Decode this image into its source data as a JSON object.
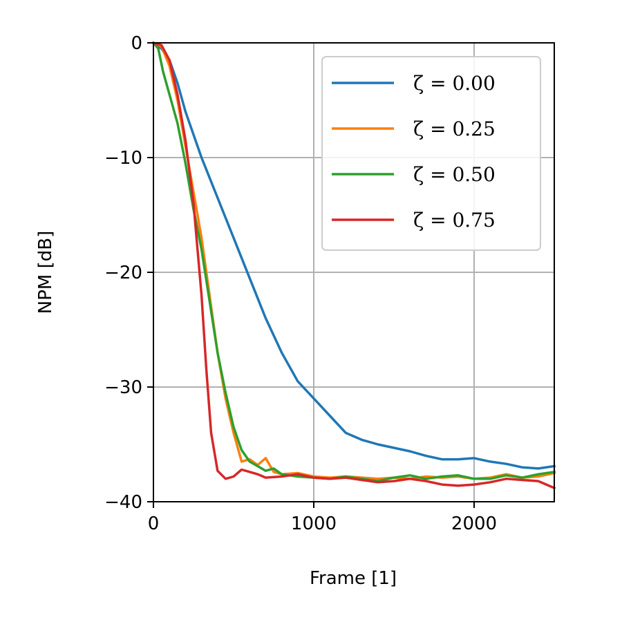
{
  "chart_data": {
    "type": "line",
    "xlabel": "Frame [1]",
    "ylabel": "NPM [dB]",
    "xlim": [
      0,
      2500
    ],
    "ylim": [
      -40,
      0
    ],
    "xticks": [
      0,
      1000,
      2000
    ],
    "yticks": [
      0,
      -10,
      -20,
      -30,
      -40
    ],
    "xtick_labels": [
      "0",
      "1000",
      "2000"
    ],
    "ytick_labels": [
      "0",
      "−10",
      "−20",
      "−30",
      "−40"
    ],
    "grid": true,
    "legend_position": "top-right",
    "series": [
      {
        "name": "ζ = 0.00",
        "color": "#1f77b4",
        "points": [
          [
            0,
            0
          ],
          [
            50,
            -0.5
          ],
          [
            100,
            -1.5
          ],
          [
            150,
            -3.5
          ],
          [
            200,
            -6
          ],
          [
            250,
            -8
          ],
          [
            300,
            -10
          ],
          [
            400,
            -13.5
          ],
          [
            500,
            -17
          ],
          [
            600,
            -20.5
          ],
          [
            700,
            -24
          ],
          [
            800,
            -27
          ],
          [
            900,
            -29.5
          ],
          [
            1000,
            -31
          ],
          [
            1100,
            -32.5
          ],
          [
            1200,
            -34
          ],
          [
            1300,
            -34.6
          ],
          [
            1400,
            -35
          ],
          [
            1500,
            -35.3
          ],
          [
            1600,
            -35.6
          ],
          [
            1700,
            -36
          ],
          [
            1800,
            -36.3
          ],
          [
            1900,
            -36.3
          ],
          [
            2000,
            -36.2
          ],
          [
            2100,
            -36.5
          ],
          [
            2200,
            -36.7
          ],
          [
            2300,
            -37
          ],
          [
            2400,
            -37.1
          ],
          [
            2500,
            -36.9
          ]
        ]
      },
      {
        "name": "ζ = 0.25",
        "color": "#ff7f0e",
        "points": [
          [
            0,
            0
          ],
          [
            50,
            -0.3
          ],
          [
            100,
            -2
          ],
          [
            150,
            -5
          ],
          [
            200,
            -9
          ],
          [
            250,
            -13
          ],
          [
            300,
            -17
          ],
          [
            350,
            -22
          ],
          [
            400,
            -27
          ],
          [
            450,
            -31
          ],
          [
            500,
            -34
          ],
          [
            550,
            -36.5
          ],
          [
            600,
            -36.3
          ],
          [
            650,
            -36.8
          ],
          [
            700,
            -36.2
          ],
          [
            750,
            -37.4
          ],
          [
            800,
            -37.6
          ],
          [
            900,
            -37.5
          ],
          [
            1000,
            -37.8
          ],
          [
            1100,
            -37.9
          ],
          [
            1200,
            -37.8
          ],
          [
            1300,
            -37.9
          ],
          [
            1400,
            -38
          ],
          [
            1500,
            -37.9
          ],
          [
            1600,
            -38
          ],
          [
            1700,
            -37.8
          ],
          [
            1800,
            -37.9
          ],
          [
            1900,
            -37.8
          ],
          [
            2000,
            -38
          ],
          [
            2100,
            -37.9
          ],
          [
            2200,
            -37.6
          ],
          [
            2300,
            -37.9
          ],
          [
            2400,
            -37.8
          ],
          [
            2500,
            -37.5
          ]
        ]
      },
      {
        "name": "ζ = 0.50",
        "color": "#2ca02c",
        "points": [
          [
            0,
            0
          ],
          [
            30,
            -0.5
          ],
          [
            60,
            -2.5
          ],
          [
            100,
            -4.5
          ],
          [
            150,
            -7
          ],
          [
            200,
            -10.5
          ],
          [
            250,
            -14.5
          ],
          [
            300,
            -18
          ],
          [
            350,
            -22.5
          ],
          [
            400,
            -27
          ],
          [
            450,
            -30.5
          ],
          [
            500,
            -33.5
          ],
          [
            550,
            -35.5
          ],
          [
            600,
            -36.5
          ],
          [
            650,
            -36.9
          ],
          [
            700,
            -37.3
          ],
          [
            750,
            -37.1
          ],
          [
            800,
            -37.6
          ],
          [
            900,
            -37.8
          ],
          [
            1000,
            -37.9
          ],
          [
            1100,
            -38
          ],
          [
            1200,
            -37.8
          ],
          [
            1300,
            -38
          ],
          [
            1400,
            -38.2
          ],
          [
            1500,
            -37.9
          ],
          [
            1600,
            -37.7
          ],
          [
            1700,
            -38
          ],
          [
            1800,
            -37.8
          ],
          [
            1900,
            -37.7
          ],
          [
            2000,
            -38
          ],
          [
            2100,
            -38
          ],
          [
            2200,
            -37.7
          ],
          [
            2300,
            -37.9
          ],
          [
            2400,
            -37.6
          ],
          [
            2500,
            -37.4
          ]
        ]
      },
      {
        "name": "ζ = 0.75",
        "color": "#d62728",
        "points": [
          [
            0,
            0
          ],
          [
            50,
            -0.2
          ],
          [
            100,
            -1.5
          ],
          [
            150,
            -4.5
          ],
          [
            200,
            -8.5
          ],
          [
            250,
            -14
          ],
          [
            300,
            -22
          ],
          [
            330,
            -28.5
          ],
          [
            360,
            -34
          ],
          [
            400,
            -37.3
          ],
          [
            450,
            -38
          ],
          [
            500,
            -37.8
          ],
          [
            550,
            -37.2
          ],
          [
            600,
            -37.4
          ],
          [
            650,
            -37.6
          ],
          [
            700,
            -37.9
          ],
          [
            800,
            -37.8
          ],
          [
            900,
            -37.6
          ],
          [
            1000,
            -37.9
          ],
          [
            1100,
            -38
          ],
          [
            1200,
            -37.9
          ],
          [
            1300,
            -38.1
          ],
          [
            1400,
            -38.3
          ],
          [
            1500,
            -38.2
          ],
          [
            1600,
            -38
          ],
          [
            1700,
            -38.2
          ],
          [
            1800,
            -38.5
          ],
          [
            1900,
            -38.6
          ],
          [
            2000,
            -38.5
          ],
          [
            2100,
            -38.3
          ],
          [
            2200,
            -38
          ],
          [
            2300,
            -38.1
          ],
          [
            2400,
            -38.2
          ],
          [
            2500,
            -38.8
          ]
        ]
      }
    ]
  }
}
